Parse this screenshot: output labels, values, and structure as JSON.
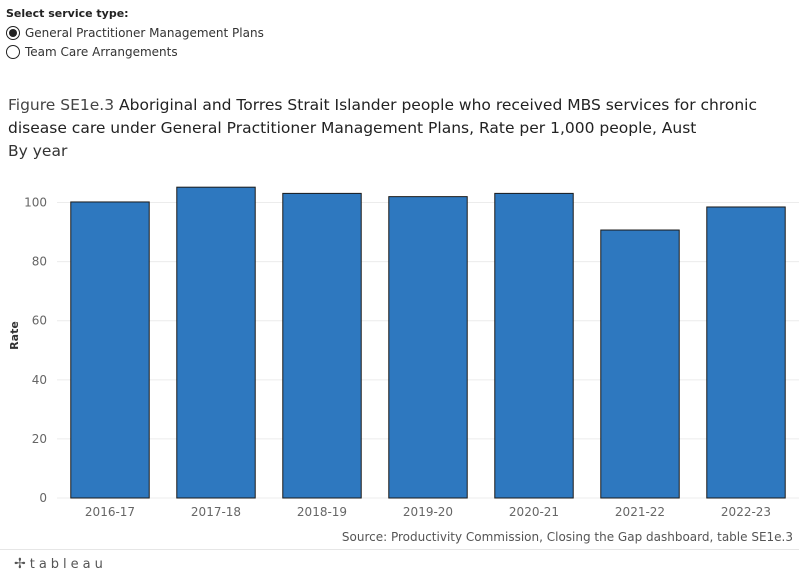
{
  "filter": {
    "label": "Select service type:",
    "options": [
      {
        "label": "General Practitioner Management Plans",
        "selected": true
      },
      {
        "label": "Team Care Arrangements",
        "selected": false
      }
    ]
  },
  "title": {
    "lead": "Figure SE1e.3",
    "main": "Aboriginal and Torres Strait Islander people who received MBS services for chronic disease care under General Practitioner Management Plans, Rate per 1,000 people, Aust",
    "subtitle": "By year"
  },
  "source": "Source: Productivity Commission, Closing the Gap dashboard, table SE1e.3",
  "brand": {
    "mark": "✢",
    "name": "tableau"
  },
  "colors": {
    "bar": "#2e78bf",
    "bar_stroke": "#1a1a1a",
    "grid": "#ececec"
  },
  "chart_data": {
    "type": "bar",
    "categories": [
      "2016-17",
      "2017-18",
      "2018-19",
      "2019-20",
      "2020-21",
      "2021-22",
      "2022-23"
    ],
    "values": [
      100.2,
      105.2,
      103.1,
      102.0,
      103.1,
      90.7,
      98.5
    ],
    "ylabel": "Rate",
    "xlabel": "",
    "ylim": [
      0,
      110
    ],
    "yticks": [
      0,
      20,
      40,
      60,
      80,
      100
    ],
    "grid": true
  }
}
